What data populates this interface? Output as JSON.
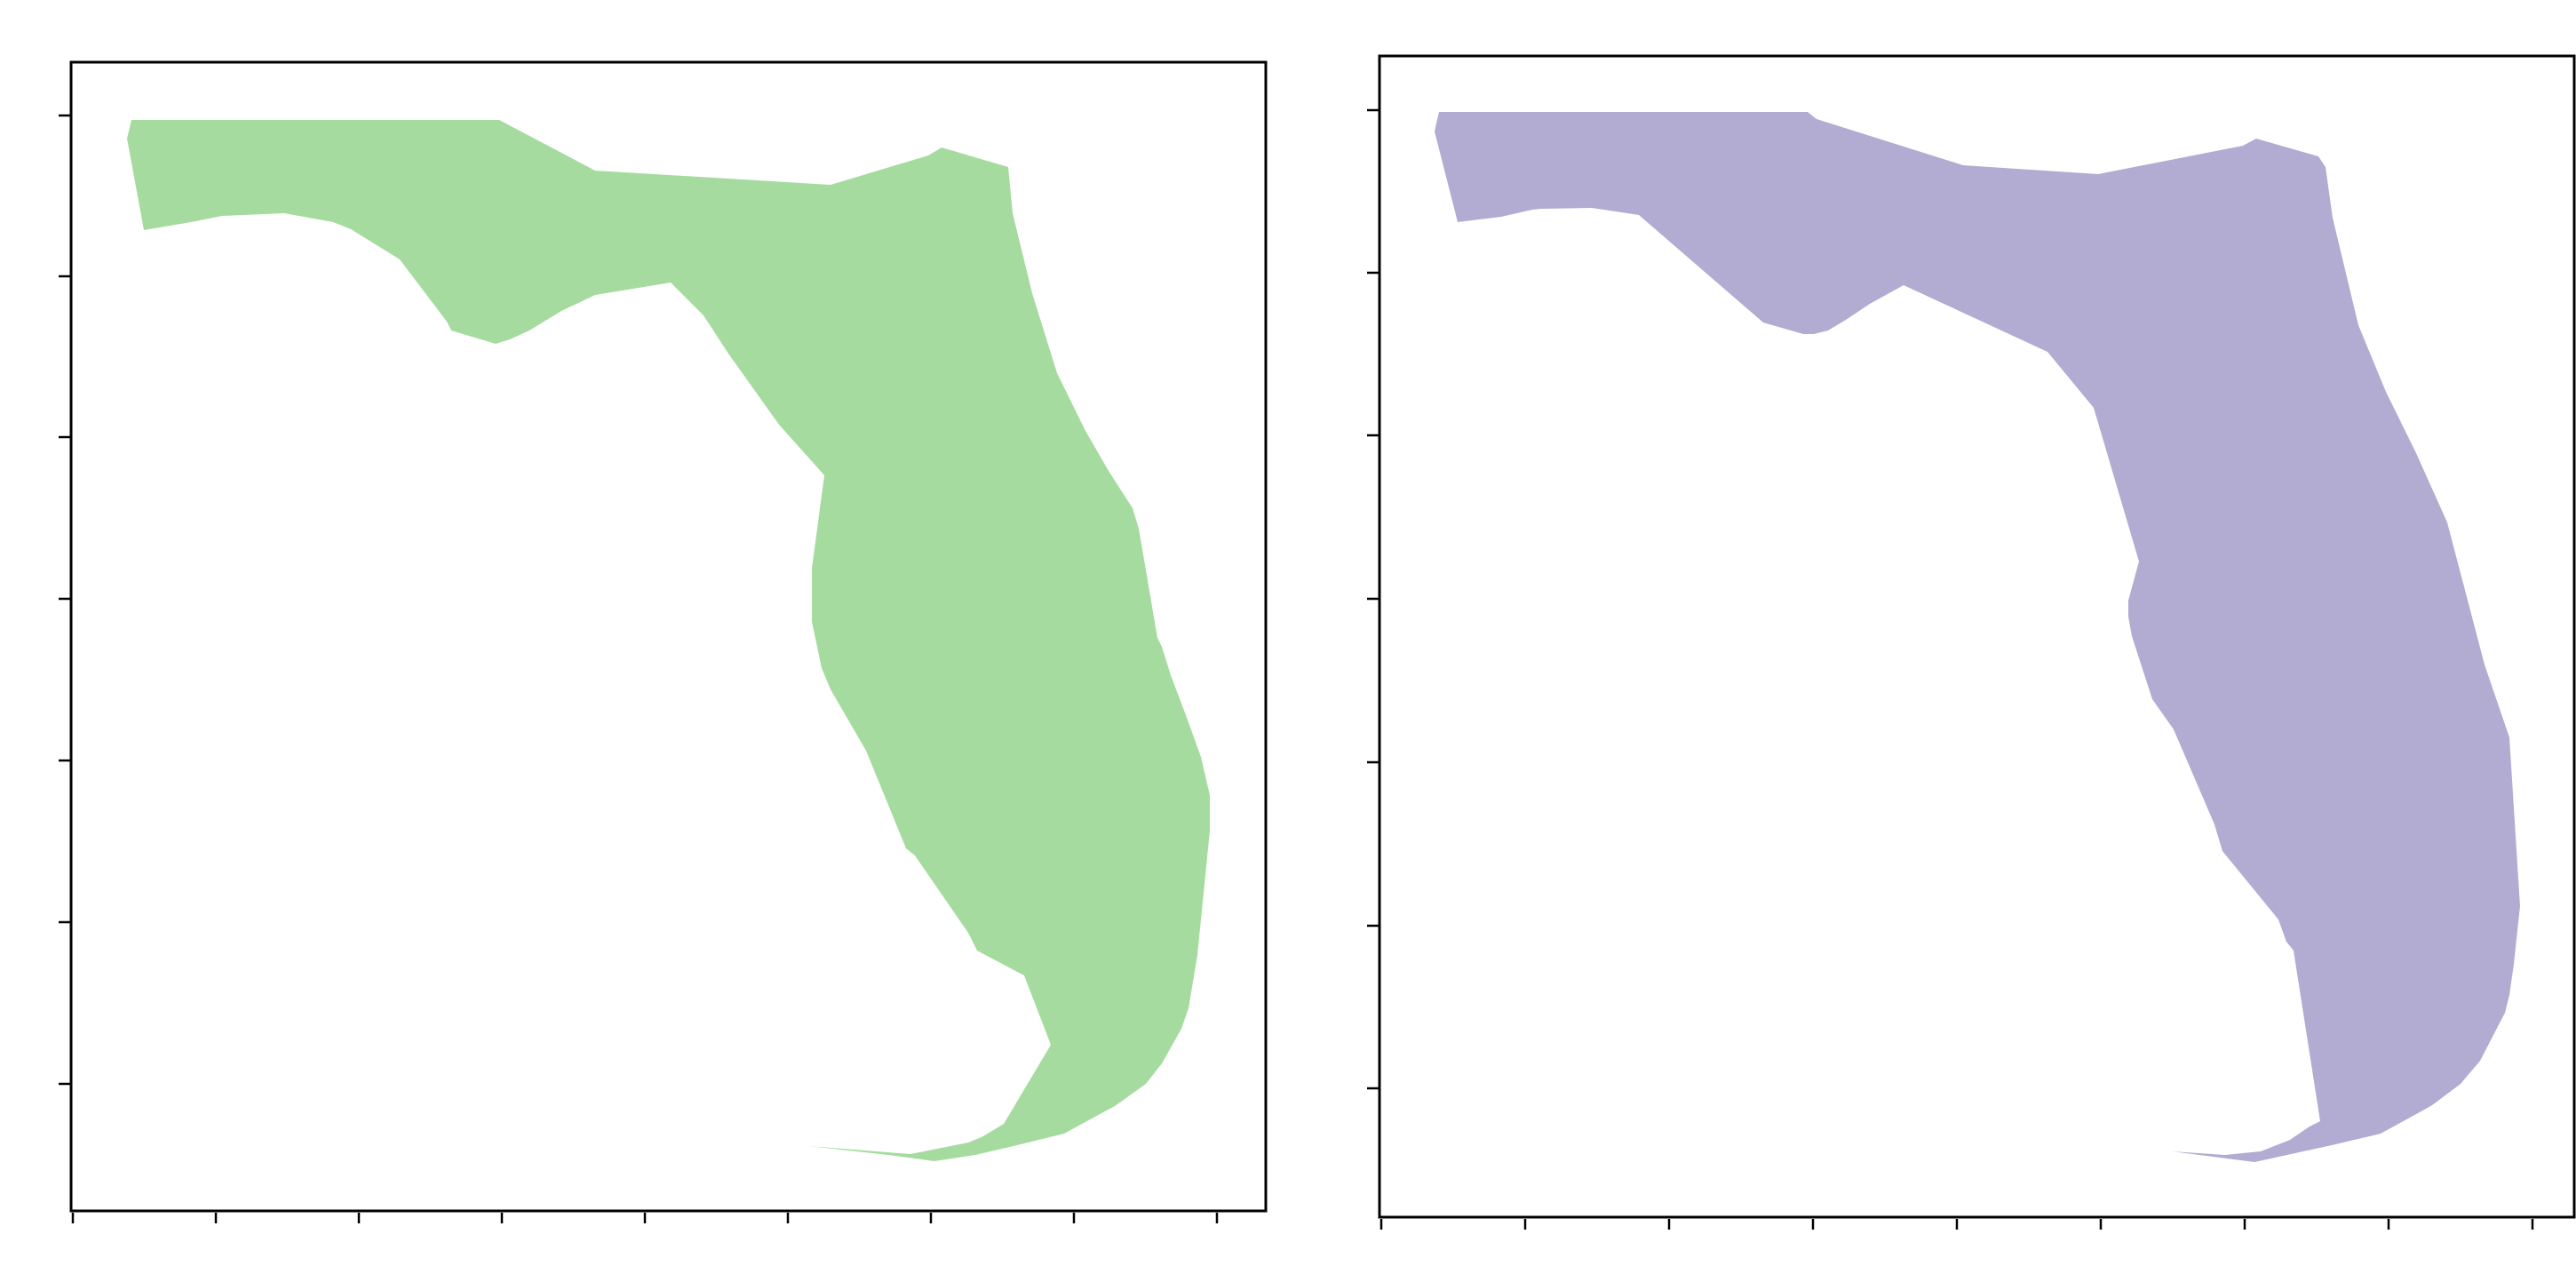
{
  "figure": {
    "panel_count": 2,
    "tick_labels_visible": false,
    "panels": [
      {
        "name": "left",
        "shape": "Florida outline",
        "fill_color": "#a6dba0",
        "frame_color": "#000000",
        "x_ticks": 9,
        "y_ticks": 7
      },
      {
        "name": "right",
        "shape": "Florida outline (alternate projection)",
        "fill_color": "#b2abd2",
        "frame_color": "#000000",
        "x_ticks": 9,
        "y_ticks": 7
      }
    ]
  }
}
